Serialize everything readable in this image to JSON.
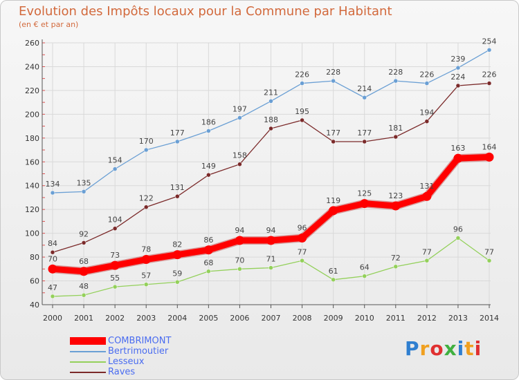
{
  "title": "Evolution des Impôts locaux pour la Commune par Habitant",
  "subtitle": "(en € et par an)",
  "logo_text": "Proxiti",
  "colors": {
    "title": "#d2693c",
    "axis_text": "#333333",
    "grid": "#d9d9d9",
    "legend_text": "#4a6cf0"
  },
  "chart_data": {
    "type": "line",
    "categories": [
      "2000",
      "2001",
      "2002",
      "2003",
      "2004",
      "2005",
      "2006",
      "2007",
      "2008",
      "2009",
      "2010",
      "2011",
      "2012",
      "2013",
      "2014"
    ],
    "ylim": [
      40,
      260
    ],
    "yticks": [
      40,
      60,
      80,
      100,
      120,
      140,
      160,
      180,
      200,
      220,
      240,
      260
    ],
    "grid": true,
    "legend_position": "bottom-left",
    "series": [
      {
        "name": "Bertrimoutier",
        "color": "#6a9fd4",
        "values": [
          134,
          135,
          154,
          170,
          177,
          186,
          197,
          211,
          226,
          228,
          214,
          228,
          226,
          239,
          254
        ]
      },
      {
        "name": "Raves",
        "color": "#7b2a2a",
        "values": [
          84,
          92,
          104,
          122,
          131,
          149,
          158,
          188,
          195,
          177,
          177,
          181,
          194,
          224,
          226
        ]
      },
      {
        "name": "Lesseux",
        "color": "#93d05a",
        "values": [
          47,
          48,
          55,
          57,
          59,
          68,
          70,
          71,
          77,
          61,
          64,
          72,
          77,
          96,
          77
        ]
      },
      {
        "name": "COMBRIMONT",
        "color": "#ff0000",
        "values": [
          70,
          68,
          73,
          78,
          82,
          86,
          94,
          94,
          96,
          119,
          125,
          123,
          131,
          163,
          164
        ]
      }
    ]
  },
  "legend": [
    {
      "label": "COMBRIMONT",
      "color": "#ff0000",
      "thick": true
    },
    {
      "label": "Bertrimoutier",
      "color": "#6a9fd4",
      "thick": false
    },
    {
      "label": "Lesseux",
      "color": "#93d05a",
      "thick": false
    },
    {
      "label": "Raves",
      "color": "#7b2a2a",
      "thick": false
    }
  ]
}
